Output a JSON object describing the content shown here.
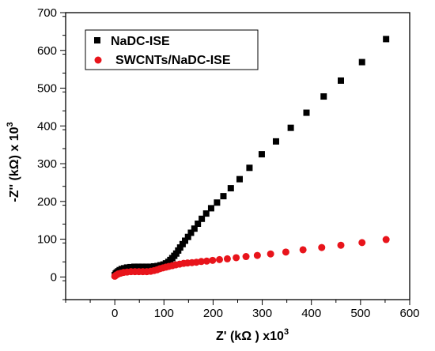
{
  "chart_data": {
    "type": "scatter",
    "xlim": [
      -100,
      600
    ],
    "ylim": [
      -60,
      700
    ],
    "x_ticks": [
      0,
      100,
      200,
      300,
      400,
      500,
      600
    ],
    "y_ticks": [
      0,
      100,
      200,
      300,
      400,
      500,
      600,
      700
    ],
    "x_minor_step": 50,
    "y_minor_step": 50,
    "xlabel": {
      "main": "Z' (kΩ ) x10",
      "sup": "3"
    },
    "ylabel": {
      "main": "-Z'' (kΩ) x 10",
      "sup": "3"
    },
    "grid": false,
    "legend_position": "top-left",
    "series": [
      {
        "name": "NaDC-ISE",
        "marker": "square",
        "color": "#000000",
        "points": [
          [
            0,
            5
          ],
          [
            2,
            9
          ],
          [
            4,
            12
          ],
          [
            7,
            15
          ],
          [
            10,
            18
          ],
          [
            14,
            21
          ],
          [
            19,
            23
          ],
          [
            25,
            25
          ],
          [
            32,
            26
          ],
          [
            40,
            27
          ],
          [
            48,
            27
          ],
          [
            56,
            27
          ],
          [
            64,
            27
          ],
          [
            72,
            27
          ],
          [
            80,
            28
          ],
          [
            87,
            29
          ],
          [
            93,
            31
          ],
          [
            99,
            33
          ],
          [
            104,
            36
          ],
          [
            109,
            40
          ],
          [
            113,
            45
          ],
          [
            117,
            50
          ],
          [
            121,
            56
          ],
          [
            125,
            62
          ],
          [
            129,
            70
          ],
          [
            133,
            78
          ],
          [
            138,
            87
          ],
          [
            143,
            96
          ],
          [
            149,
            106
          ],
          [
            155,
            117
          ],
          [
            162,
            128
          ],
          [
            169,
            141
          ],
          [
            177,
            154
          ],
          [
            186,
            168
          ],
          [
            196,
            182
          ],
          [
            208,
            197
          ],
          [
            221,
            214
          ],
          [
            236,
            235
          ],
          [
            254,
            259
          ],
          [
            274,
            289
          ],
          [
            299,
            325
          ],
          [
            328,
            359
          ],
          [
            358,
            395
          ],
          [
            390,
            435
          ],
          [
            425,
            478
          ],
          [
            460,
            520
          ],
          [
            503,
            569
          ],
          [
            552,
            630
          ]
        ]
      },
      {
        "name": "SWCNTs/NaDC-ISE",
        "marker": "circle",
        "color": "#e8141b",
        "points": [
          [
            0,
            2
          ],
          [
            3,
            5
          ],
          [
            7,
            8
          ],
          [
            12,
            10
          ],
          [
            18,
            12
          ],
          [
            25,
            13
          ],
          [
            33,
            14
          ],
          [
            41,
            14
          ],
          [
            49,
            14
          ],
          [
            57,
            14
          ],
          [
            65,
            14
          ],
          [
            73,
            15
          ],
          [
            80,
            17
          ],
          [
            86,
            19
          ],
          [
            92,
            22
          ],
          [
            98,
            24
          ],
          [
            104,
            26
          ],
          [
            110,
            28
          ],
          [
            117,
            30
          ],
          [
            124,
            32
          ],
          [
            132,
            34
          ],
          [
            140,
            36
          ],
          [
            148,
            37
          ],
          [
            157,
            38
          ],
          [
            166,
            39
          ],
          [
            176,
            41
          ],
          [
            187,
            42
          ],
          [
            199,
            44
          ],
          [
            213,
            46
          ],
          [
            229,
            48
          ],
          [
            247,
            51
          ],
          [
            267,
            54
          ],
          [
            290,
            57
          ],
          [
            317,
            61
          ],
          [
            348,
            66
          ],
          [
            383,
            72
          ],
          [
            421,
            78
          ],
          [
            460,
            84
          ],
          [
            503,
            91
          ],
          [
            552,
            99
          ]
        ]
      }
    ]
  }
}
